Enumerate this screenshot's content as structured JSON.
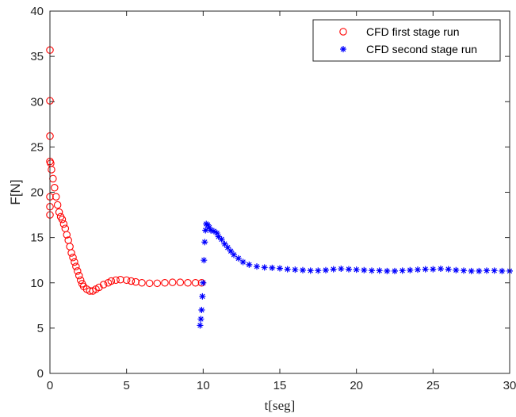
{
  "chart_data": {
    "type": "scatter",
    "title": "",
    "xlabel": "t[seg]",
    "ylabel": "F[N]",
    "xlim": [
      0,
      30
    ],
    "ylim": [
      0,
      40
    ],
    "xticks": [
      0,
      5,
      10,
      15,
      20,
      25,
      30
    ],
    "yticks": [
      0,
      5,
      10,
      15,
      20,
      25,
      30,
      35,
      40
    ],
    "xtick_labels": [
      "0",
      "5",
      "10",
      "15",
      "20",
      "25",
      "30"
    ],
    "ytick_labels": [
      "0",
      "5",
      "10",
      "15",
      "20",
      "25",
      "30",
      "35",
      "40"
    ],
    "grid": false,
    "legend_position": "top-right",
    "series": [
      {
        "name": "CFD first stage run",
        "marker": "circle-open",
        "color": "#ff0000",
        "points": [
          [
            0.0,
            35.7
          ],
          [
            0.0,
            30.1
          ],
          [
            0.0,
            26.2
          ],
          [
            0.0,
            23.4
          ],
          [
            0.0,
            19.5
          ],
          [
            0.0,
            18.4
          ],
          [
            0.0,
            17.5
          ],
          [
            0.05,
            23.2
          ],
          [
            0.1,
            22.5
          ],
          [
            0.2,
            21.5
          ],
          [
            0.3,
            20.5
          ],
          [
            0.4,
            19.5
          ],
          [
            0.5,
            18.6
          ],
          [
            0.6,
            17.8
          ],
          [
            0.7,
            17.3
          ],
          [
            0.8,
            17.0
          ],
          [
            0.9,
            16.5
          ],
          [
            1.0,
            16.0
          ],
          [
            1.1,
            15.3
          ],
          [
            1.2,
            14.7
          ],
          [
            1.3,
            14.0
          ],
          [
            1.4,
            13.3
          ],
          [
            1.5,
            12.8
          ],
          [
            1.6,
            12.3
          ],
          [
            1.7,
            11.8
          ],
          [
            1.8,
            11.3
          ],
          [
            1.9,
            10.8
          ],
          [
            2.0,
            10.3
          ],
          [
            2.1,
            9.9
          ],
          [
            2.2,
            9.6
          ],
          [
            2.4,
            9.3
          ],
          [
            2.6,
            9.1
          ],
          [
            2.8,
            9.1
          ],
          [
            3.0,
            9.3
          ],
          [
            3.2,
            9.5
          ],
          [
            3.5,
            9.8
          ],
          [
            3.8,
            10.0
          ],
          [
            4.0,
            10.2
          ],
          [
            4.3,
            10.3
          ],
          [
            4.6,
            10.35
          ],
          [
            5.0,
            10.3
          ],
          [
            5.3,
            10.2
          ],
          [
            5.6,
            10.1
          ],
          [
            6.0,
            10.0
          ],
          [
            6.5,
            9.95
          ],
          [
            7.0,
            9.95
          ],
          [
            7.5,
            10.0
          ],
          [
            8.0,
            10.05
          ],
          [
            8.5,
            10.05
          ],
          [
            9.0,
            10.0
          ],
          [
            9.5,
            10.0
          ],
          [
            9.9,
            10.0
          ]
        ]
      },
      {
        "name": "CFD second stage run",
        "marker": "asterisk",
        "color": "#0000ff",
        "points": [
          [
            9.8,
            5.3
          ],
          [
            9.85,
            6.0
          ],
          [
            9.9,
            7.0
          ],
          [
            9.95,
            8.5
          ],
          [
            10.0,
            10.0
          ],
          [
            10.05,
            12.5
          ],
          [
            10.1,
            14.5
          ],
          [
            10.15,
            15.8
          ],
          [
            10.2,
            16.5
          ],
          [
            10.3,
            16.4
          ],
          [
            10.4,
            16.1
          ],
          [
            10.5,
            15.8
          ],
          [
            10.7,
            15.7
          ],
          [
            10.9,
            15.5
          ],
          [
            11.0,
            15.1
          ],
          [
            11.2,
            14.8
          ],
          [
            11.4,
            14.3
          ],
          [
            11.6,
            13.9
          ],
          [
            11.8,
            13.5
          ],
          [
            12.0,
            13.1
          ],
          [
            12.3,
            12.7
          ],
          [
            12.6,
            12.3
          ],
          [
            13.0,
            12.0
          ],
          [
            13.5,
            11.8
          ],
          [
            14.0,
            11.7
          ],
          [
            14.5,
            11.65
          ],
          [
            15.0,
            11.6
          ],
          [
            15.5,
            11.5
          ],
          [
            16.0,
            11.45
          ],
          [
            16.5,
            11.4
          ],
          [
            17.0,
            11.35
          ],
          [
            17.5,
            11.35
          ],
          [
            18.0,
            11.4
          ],
          [
            18.5,
            11.5
          ],
          [
            19.0,
            11.55
          ],
          [
            19.5,
            11.5
          ],
          [
            20.0,
            11.45
          ],
          [
            20.5,
            11.4
          ],
          [
            21.0,
            11.35
          ],
          [
            21.5,
            11.35
          ],
          [
            22.0,
            11.3
          ],
          [
            22.5,
            11.3
          ],
          [
            23.0,
            11.35
          ],
          [
            23.5,
            11.4
          ],
          [
            24.0,
            11.45
          ],
          [
            24.5,
            11.5
          ],
          [
            25.0,
            11.5
          ],
          [
            25.5,
            11.55
          ],
          [
            26.0,
            11.5
          ],
          [
            26.5,
            11.4
          ],
          [
            27.0,
            11.35
          ],
          [
            27.5,
            11.3
          ],
          [
            28.0,
            11.3
          ],
          [
            28.5,
            11.35
          ],
          [
            29.0,
            11.35
          ],
          [
            29.5,
            11.3
          ],
          [
            30.0,
            11.3
          ]
        ]
      }
    ]
  }
}
